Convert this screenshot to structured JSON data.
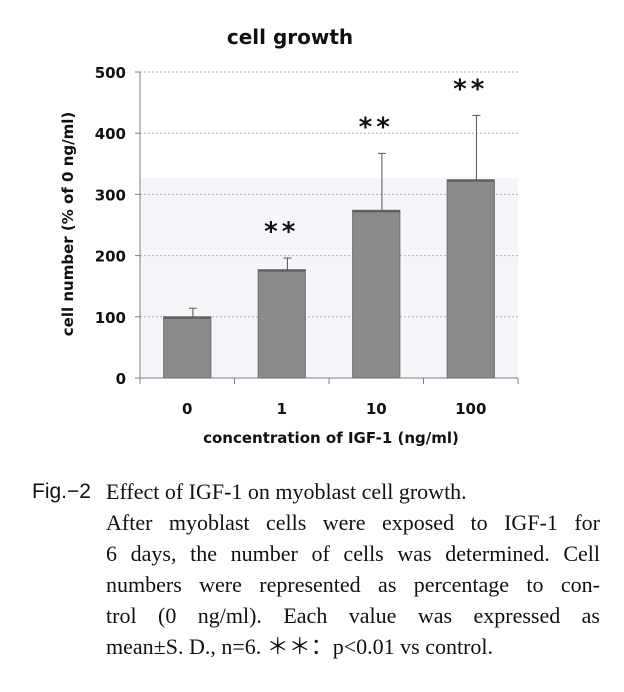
{
  "chart_data": {
    "type": "bar",
    "title": "cell growth",
    "xlabel": "concentration of IGF-1 (ng/ml)",
    "ylabel": "cell number (% of 0 ng/ml)",
    "categories": [
      "0",
      "1",
      "10",
      "100"
    ],
    "values": [
      100,
      177,
      274,
      324
    ],
    "error_sd": [
      14,
      19,
      93,
      105
    ],
    "significance": [
      "",
      "**",
      "**",
      "**"
    ],
    "ylim": [
      0,
      500
    ],
    "yticks": [
      "0",
      "100",
      "200",
      "300",
      "400",
      "500"
    ],
    "grid": true,
    "colors": {
      "bar": "#8a8a8a",
      "bar_edge": "#6f6f6f",
      "grid": "#b0b0b0",
      "axis": "#808080"
    }
  },
  "caption": {
    "fig_label": "Fig.−2",
    "title": "Effect of IGF-1 on myoblast cell growth.",
    "lines": [
      "After myoblast cells were exposed to IGF-1 for",
      "6 days, the number of cells was determined. Cell",
      "numbers were represented as percentage to con-",
      "trol (0 ng/ml). Each value was expressed as",
      "mean±S. D., n=6. ＊＊：p<0.01 vs control."
    ]
  }
}
